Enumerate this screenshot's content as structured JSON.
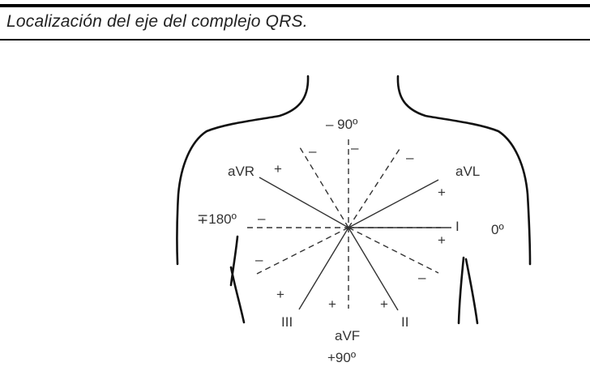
{
  "title": "Localización del eje del complejo QRS.",
  "labels": {
    "top_angle": "– 90º",
    "left_angle": "∓180º",
    "right_angle": "0º",
    "bottom_angle": "+90º",
    "avr": "aVR",
    "avl": "aVL",
    "avf": "aVF",
    "lead_i": "I",
    "lead_ii": "II",
    "lead_iii": "III"
  },
  "signs": {
    "avr_plus": "+",
    "avl_plus": "+",
    "i_plus": "+",
    "ii_plus": "+",
    "iii_plus": "+",
    "avf_plus": "+",
    "minus_top_left": "–",
    "minus_top_right": "–",
    "minus_upper_right": "–",
    "minus_left": "–",
    "minus_lower_left": "–",
    "minus_lower_right": "–"
  }
}
